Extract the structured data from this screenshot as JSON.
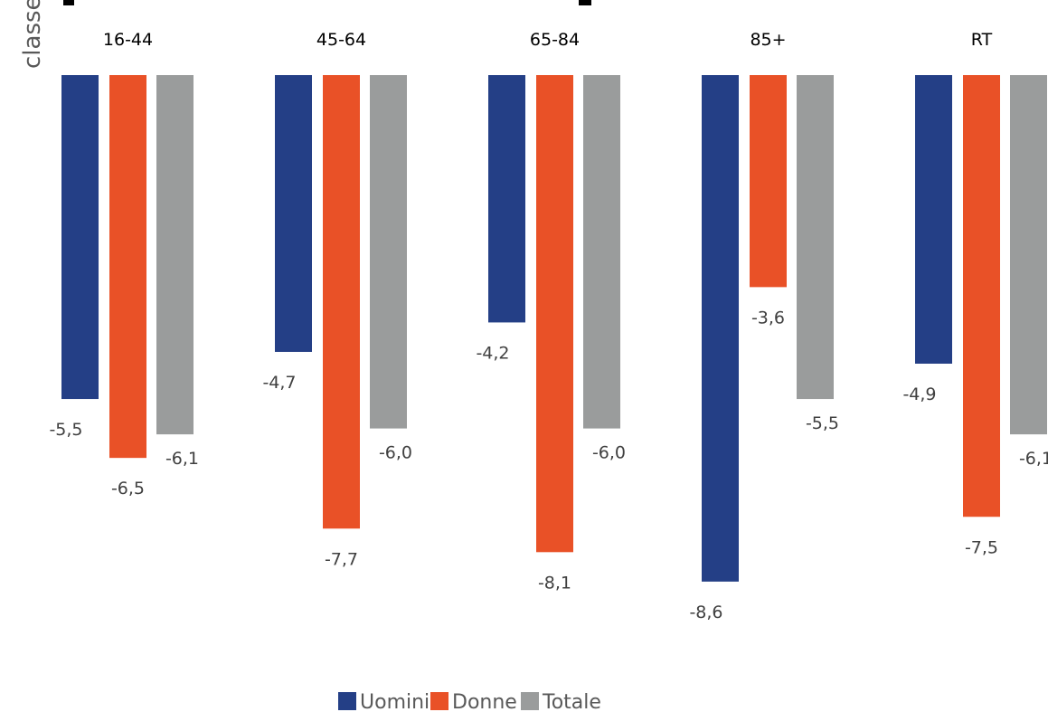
{
  "chart_data": {
    "type": "bar",
    "title": "",
    "ylabel": "classe età",
    "xlabel": "",
    "categories": [
      "16-44",
      "45-64",
      "65-84",
      "85+",
      "RT"
    ],
    "series": [
      {
        "name": "Uomini",
        "color": "#243f86",
        "values": [
          -5.5,
          -4.7,
          -4.2,
          -8.6,
          -4.9
        ],
        "labels": [
          "-5,5",
          "-4,7",
          "-4,2",
          "-8,6",
          "-4,9"
        ]
      },
      {
        "name": "Donne",
        "color": "#e95127",
        "values": [
          -6.5,
          -7.7,
          -8.1,
          -3.6,
          -7.5
        ],
        "labels": [
          "-6,5",
          "-7,7",
          "-8,1",
          "-3,6",
          "-7,5"
        ]
      },
      {
        "name": "Totale",
        "color": "#9a9c9c",
        "values": [
          -6.1,
          -6.0,
          -6.0,
          -5.5,
          -6.1
        ],
        "labels": [
          "-6,1",
          "-6,0",
          "-6,0",
          "-5,5",
          "-6,1"
        ]
      }
    ],
    "ylim": [
      -8.6,
      0
    ],
    "grid": false,
    "legend_position": "bottom-center"
  }
}
